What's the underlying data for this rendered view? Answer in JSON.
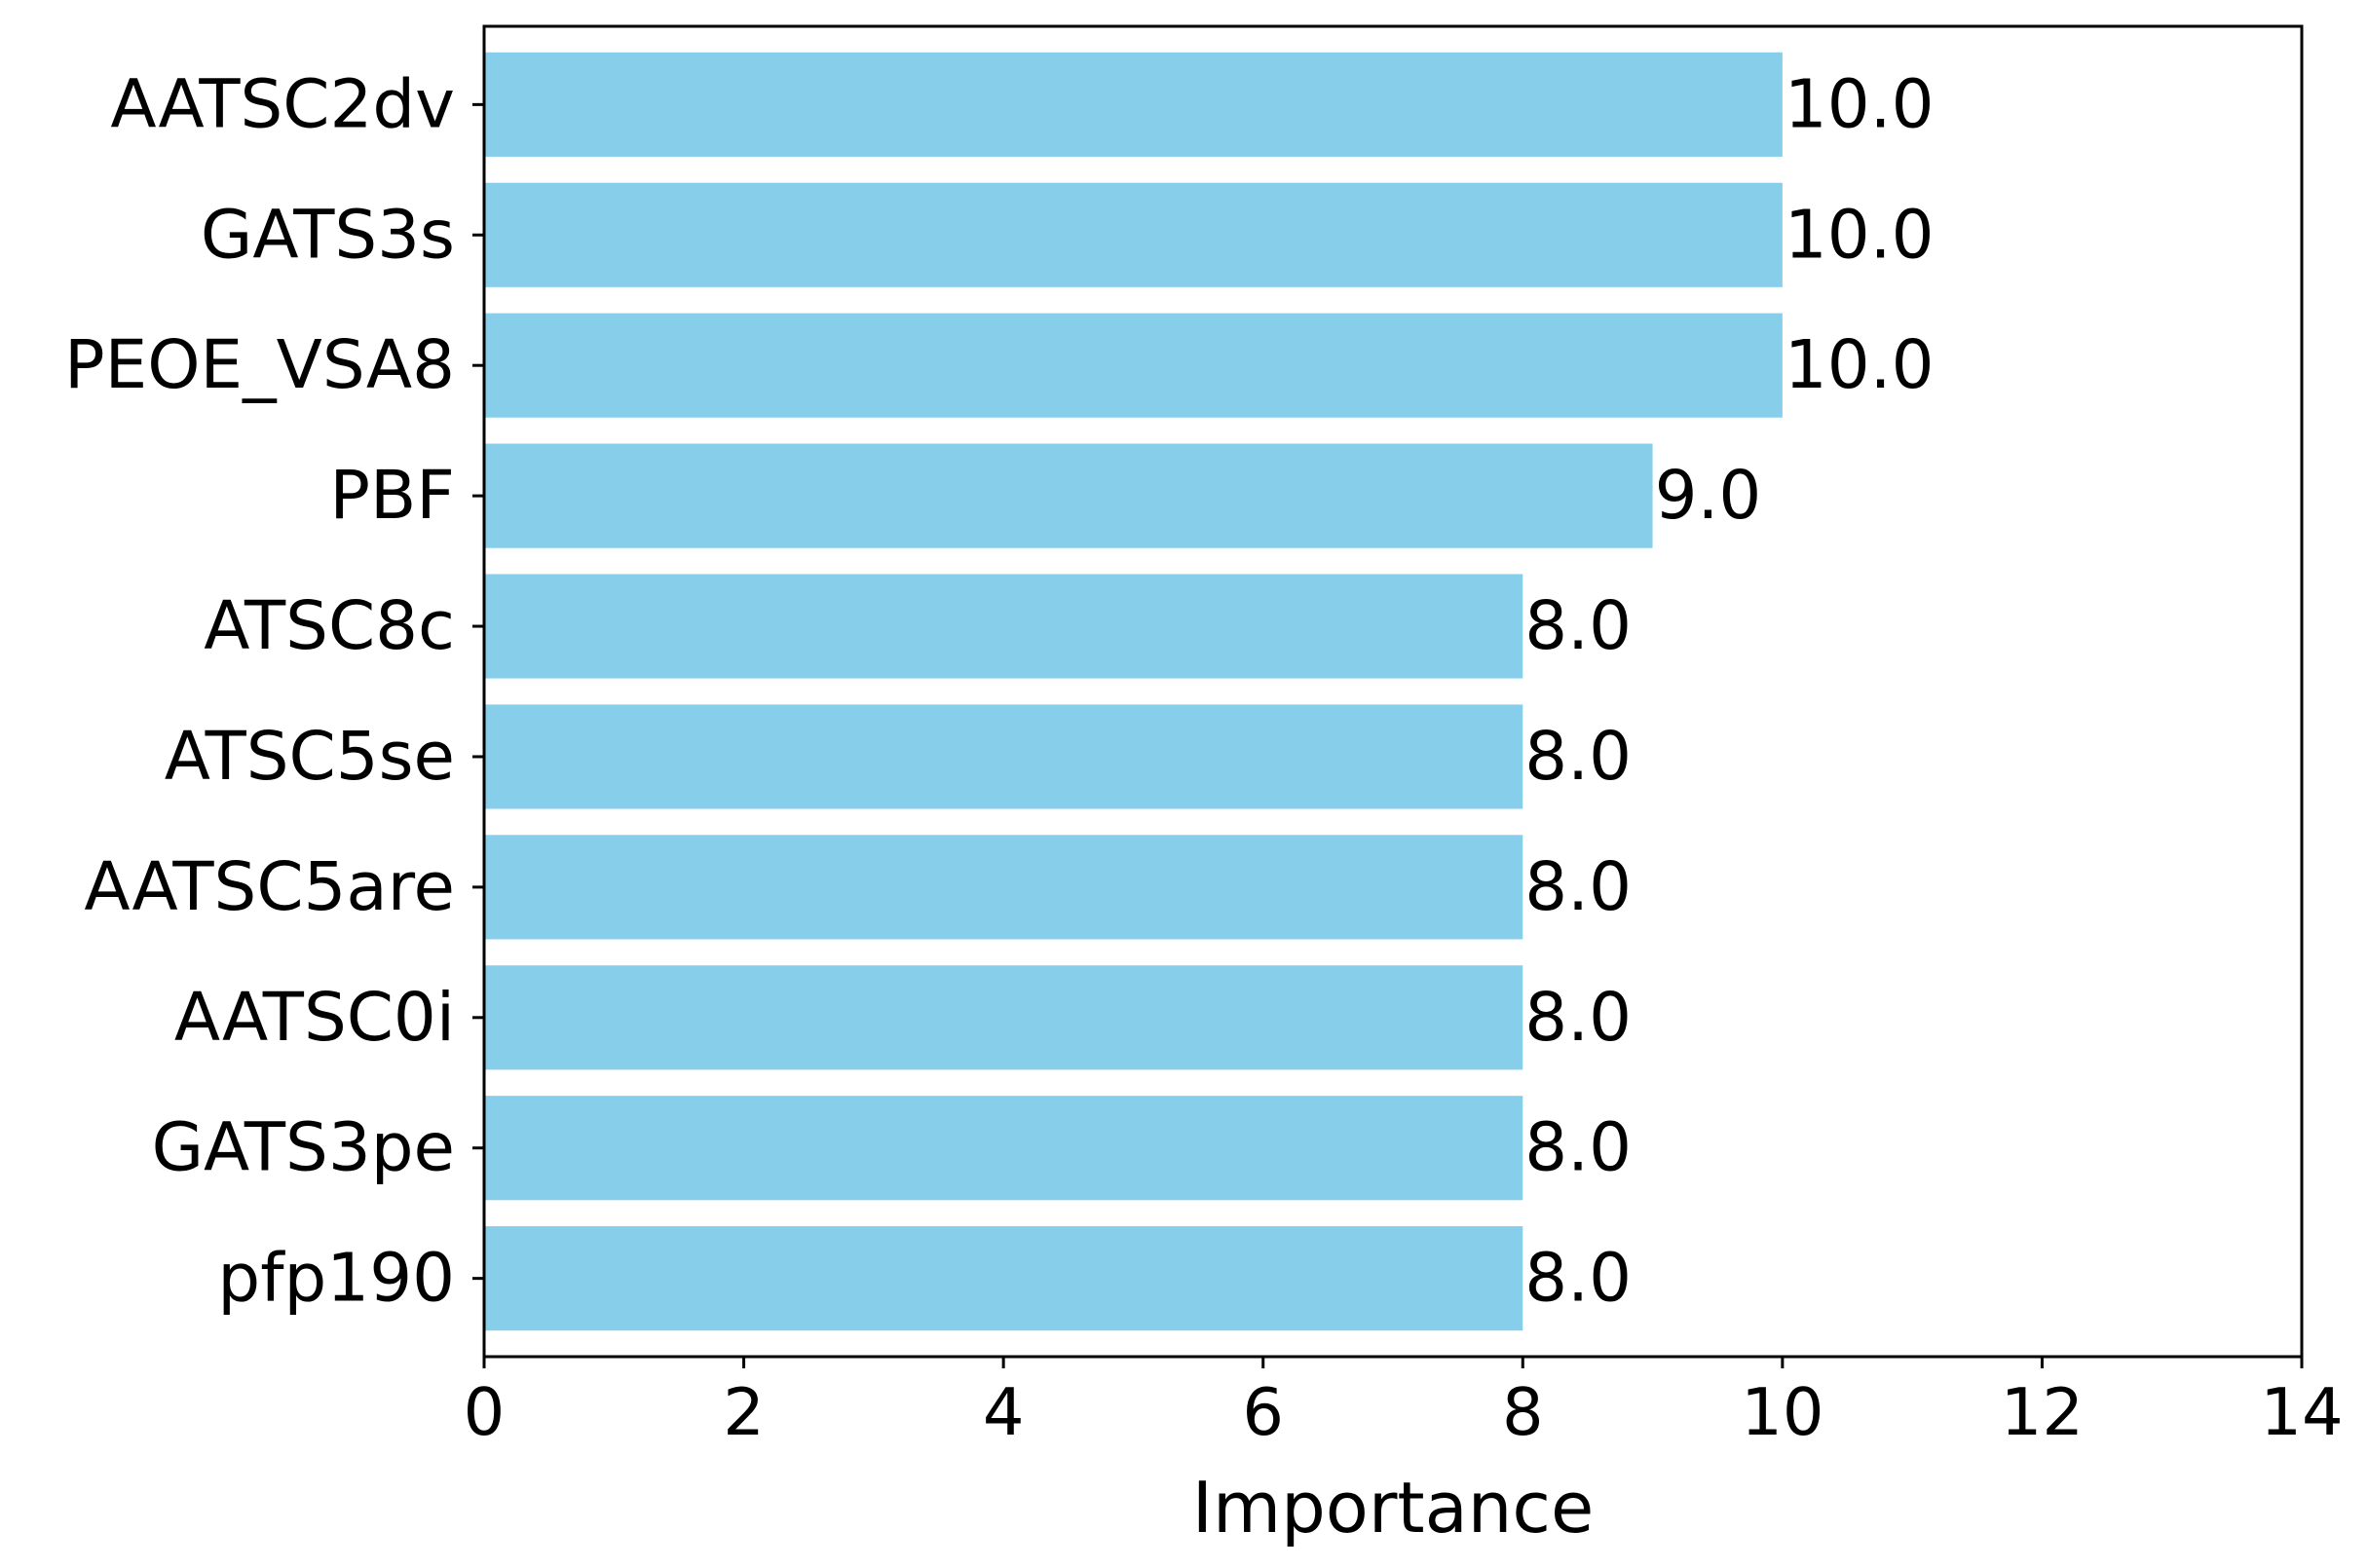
{
  "chart_data": {
    "type": "bar",
    "orientation": "horizontal",
    "categories": [
      "AATSC2dv",
      "GATS3s",
      "PEOE_VSA8",
      "PBF",
      "ATSC8c",
      "ATSC5se",
      "AATSC5are",
      "AATSC0i",
      "GATS3pe",
      "pfp190"
    ],
    "values": [
      10.0,
      10.0,
      10.0,
      9.0,
      8.0,
      8.0,
      8.0,
      8.0,
      8.0,
      8.0
    ],
    "value_labels": [
      "10.0",
      "10.0",
      "10.0",
      "9.0",
      "8.0",
      "8.0",
      "8.0",
      "8.0",
      "8.0",
      "8.0"
    ],
    "xlabel": "Importance",
    "ylabel": "",
    "xlim": [
      0,
      14
    ],
    "xticks": [
      0,
      2,
      4,
      6,
      8,
      10,
      12,
      14
    ],
    "grid": false,
    "bar_color": "#87CEEB",
    "axis_color": "#000000"
  }
}
